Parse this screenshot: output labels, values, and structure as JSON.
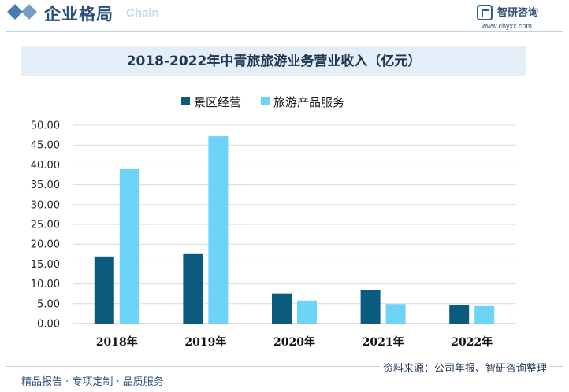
{
  "header": {
    "section_title": "企业格局",
    "watermark_en": "Chain",
    "brand_name": "智研咨询",
    "brand_url": "www.chyxx.com"
  },
  "colors": {
    "series1": "#0b5b7e",
    "series2": "#6dd3f7",
    "brand": "#2c4f7c"
  },
  "chart_data": {
    "type": "bar",
    "title": "2018-2022年中青旅旅游业务营业收入（亿元）",
    "categories": [
      "2018年",
      "2019年",
      "2020年",
      "2021年",
      "2022年"
    ],
    "series": [
      {
        "name": "景区经营",
        "values": [
          16.9,
          17.5,
          7.6,
          8.5,
          4.6
        ]
      },
      {
        "name": "旅游产品服务",
        "values": [
          38.9,
          47.2,
          5.8,
          4.9,
          4.4
        ]
      }
    ],
    "ylim": [
      0,
      50
    ],
    "yticks": [
      "0.00",
      "5.00",
      "10.00",
      "15.00",
      "20.00",
      "25.00",
      "30.00",
      "35.00",
      "40.00",
      "45.00",
      "50.00"
    ],
    "xlabel": "",
    "ylabel": "",
    "grid": true,
    "legend_position": "top-center"
  },
  "footer": {
    "left": "精品报告 · 专项定制 · 品质服务",
    "source": "资料来源：公司年报、智研咨询整理"
  }
}
